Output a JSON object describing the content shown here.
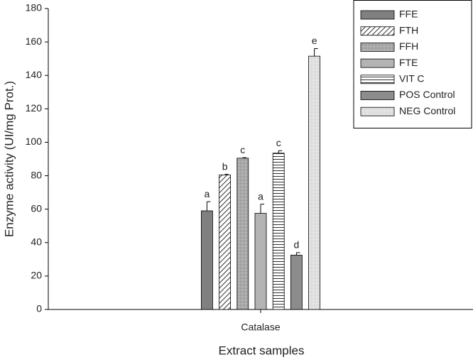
{
  "chart_data": {
    "type": "bar",
    "x_label": "Extract samples",
    "y_label": "Enzyme activity (UI/mg Prot.)",
    "categories": [
      "Catalase"
    ],
    "ylim": [
      0,
      180
    ],
    "yticks": [
      0,
      20,
      40,
      60,
      80,
      100,
      120,
      140,
      160,
      180
    ],
    "legend": "upper right",
    "series": [
      {
        "name": "FFE",
        "color": "#808080",
        "pattern": "solid",
        "values": [
          59
        ],
        "errors": [
          5.5
        ],
        "annotation": "a"
      },
      {
        "name": "FTH",
        "color": "#404040",
        "pattern": "diagonal",
        "values": [
          80.5
        ],
        "errors": [
          0.3
        ],
        "annotation": "b"
      },
      {
        "name": "FFH",
        "color": "#a0a0a0",
        "pattern": "dots",
        "values": [
          90.5
        ],
        "errors": [
          0.3
        ],
        "annotation": "c"
      },
      {
        "name": "FTE",
        "color": "#b4b4b4",
        "pattern": "solid",
        "values": [
          57.5
        ],
        "errors": [
          5.5
        ],
        "annotation": "a"
      },
      {
        "name": "VIT C",
        "color": "#303030",
        "pattern": "horizontal",
        "values": [
          93.5
        ],
        "errors": [
          1.5
        ],
        "annotation": "c"
      },
      {
        "name": "POS Control",
        "color": "#8c8c8c",
        "pattern": "solid",
        "values": [
          32.5
        ],
        "errors": [
          1.5
        ],
        "annotation": "d"
      },
      {
        "name": "NEG Control",
        "color": "#e0e0e0",
        "pattern": "lightdots",
        "values": [
          151.5
        ],
        "errors": [
          4.5
        ],
        "annotation": "e"
      }
    ]
  }
}
